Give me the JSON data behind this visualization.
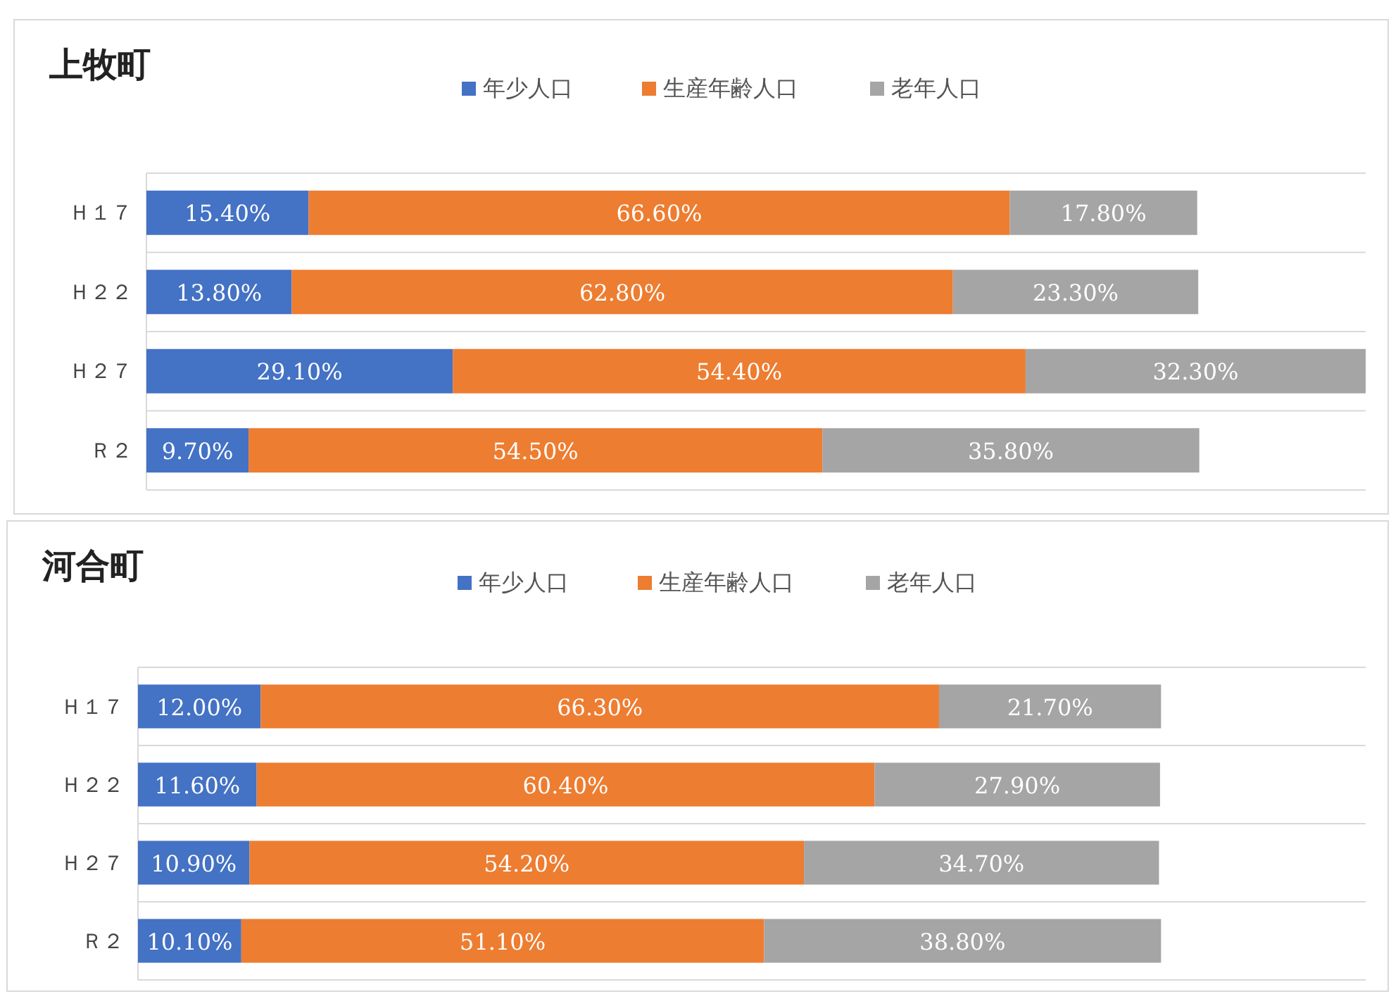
{
  "chart_data": [
    {
      "type": "bar",
      "orientation": "horizontal",
      "stacked": true,
      "title": "上牧町",
      "categories": [
        "Ｈ１７",
        "Ｈ２２",
        "Ｈ２７",
        "Ｒ２"
      ],
      "xlim": [
        0,
        115.8
      ],
      "tick_labels": "y",
      "grid": "y",
      "legend": "top",
      "series": [
        {
          "name": "年少人口",
          "color": "#4472c4",
          "values": [
            15.4,
            13.8,
            29.1,
            9.7
          ],
          "value_labels": [
            "15.40%",
            "13.80%",
            "29.10%",
            "9.70%"
          ]
        },
        {
          "name": "生産年齢人口",
          "color": "#ed7d31",
          "values": [
            66.6,
            62.8,
            54.4,
            54.5
          ],
          "value_labels": [
            "66.60%",
            "62.80%",
            "54.40%",
            "54.50%"
          ]
        },
        {
          "name": "老年人口",
          "color": "#a5a5a5",
          "values": [
            17.8,
            23.3,
            32.3,
            35.8
          ],
          "value_labels": [
            "17.80%",
            "23.30%",
            "32.30%",
            "35.80%"
          ]
        }
      ]
    },
    {
      "type": "bar",
      "orientation": "horizontal",
      "stacked": true,
      "title": "河合町",
      "categories": [
        "Ｈ１７",
        "Ｈ２２",
        "Ｈ２７",
        "Ｒ２"
      ],
      "xlim": [
        0,
        120
      ],
      "tick_labels": "y",
      "grid": "y",
      "legend": "top",
      "series": [
        {
          "name": "年少人口",
          "color": "#4472c4",
          "values": [
            12.0,
            11.6,
            10.9,
            10.1
          ],
          "value_labels": [
            "12.00%",
            "11.60%",
            "10.90%",
            "10.10%"
          ]
        },
        {
          "name": "生産年齢人口",
          "color": "#ed7d31",
          "values": [
            66.3,
            60.4,
            54.2,
            51.1
          ],
          "value_labels": [
            "66.30%",
            "60.40%",
            "54.20%",
            "51.10%"
          ]
        },
        {
          "name": "老年人口",
          "color": "#a5a5a5",
          "values": [
            21.7,
            27.9,
            34.7,
            38.8
          ],
          "value_labels": [
            "21.70%",
            "27.90%",
            "34.70%",
            "38.80%"
          ]
        }
      ]
    }
  ]
}
